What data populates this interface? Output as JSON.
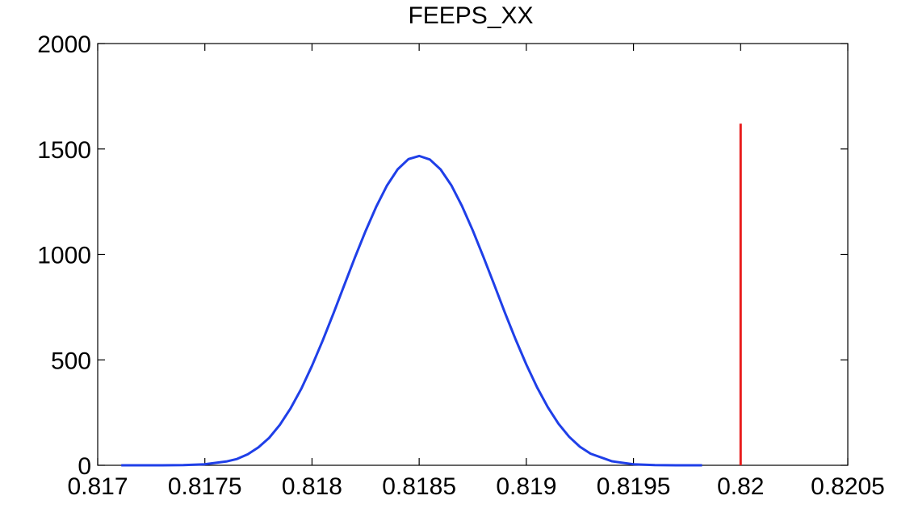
{
  "chart_data": {
    "type": "line",
    "title": "FEEPS_XX",
    "xlabel": "",
    "ylabel": "",
    "xlim": [
      0.817,
      0.8205
    ],
    "ylim": [
      0,
      2000
    ],
    "xticks": [
      0.817,
      0.8175,
      0.818,
      0.8185,
      0.819,
      0.8195,
      0.82,
      0.8205
    ],
    "xtick_labels": [
      "0.817",
      "0.8175",
      "0.818",
      "0.8185",
      "0.819",
      "0.8195",
      "0.82",
      "0.8205"
    ],
    "yticks": [
      0,
      500,
      1000,
      1500,
      2000
    ],
    "ytick_labels": [
      "0",
      "500",
      "1000",
      "1500",
      "2000"
    ],
    "grid": false,
    "series": [
      {
        "color": "#1f3fe8",
        "x": [
          0.81711,
          0.8172,
          0.8173,
          0.8174,
          0.8175,
          0.8176,
          0.81765,
          0.8177,
          0.81775,
          0.8178,
          0.81785,
          0.8179,
          0.81795,
          0.818,
          0.81805,
          0.8181,
          0.81815,
          0.8182,
          0.81825,
          0.8183,
          0.81835,
          0.8184,
          0.81845,
          0.8185,
          0.81855,
          0.8186,
          0.81865,
          0.8187,
          0.81875,
          0.8188,
          0.81885,
          0.8189,
          0.81895,
          0.819,
          0.81905,
          0.8191,
          0.81915,
          0.8192,
          0.81925,
          0.8193,
          0.8194,
          0.8195,
          0.8196,
          0.8197,
          0.81982
        ],
        "y": [
          0,
          0,
          0.1,
          0.8,
          5,
          18,
          30,
          52,
          85,
          130,
          192,
          270,
          363,
          472,
          592,
          720,
          853,
          985,
          1111,
          1227,
          1327,
          1404,
          1452,
          1467,
          1450,
          1403,
          1328,
          1229,
          1114,
          988,
          857,
          724,
          597,
          478,
          370,
          276,
          197,
          135,
          88,
          55,
          19,
          5,
          1,
          0.1,
          0
        ]
      },
      {
        "color": "#e81e1e",
        "x": [
          0.82,
          0.82
        ],
        "y": [
          0,
          1620
        ]
      }
    ]
  }
}
